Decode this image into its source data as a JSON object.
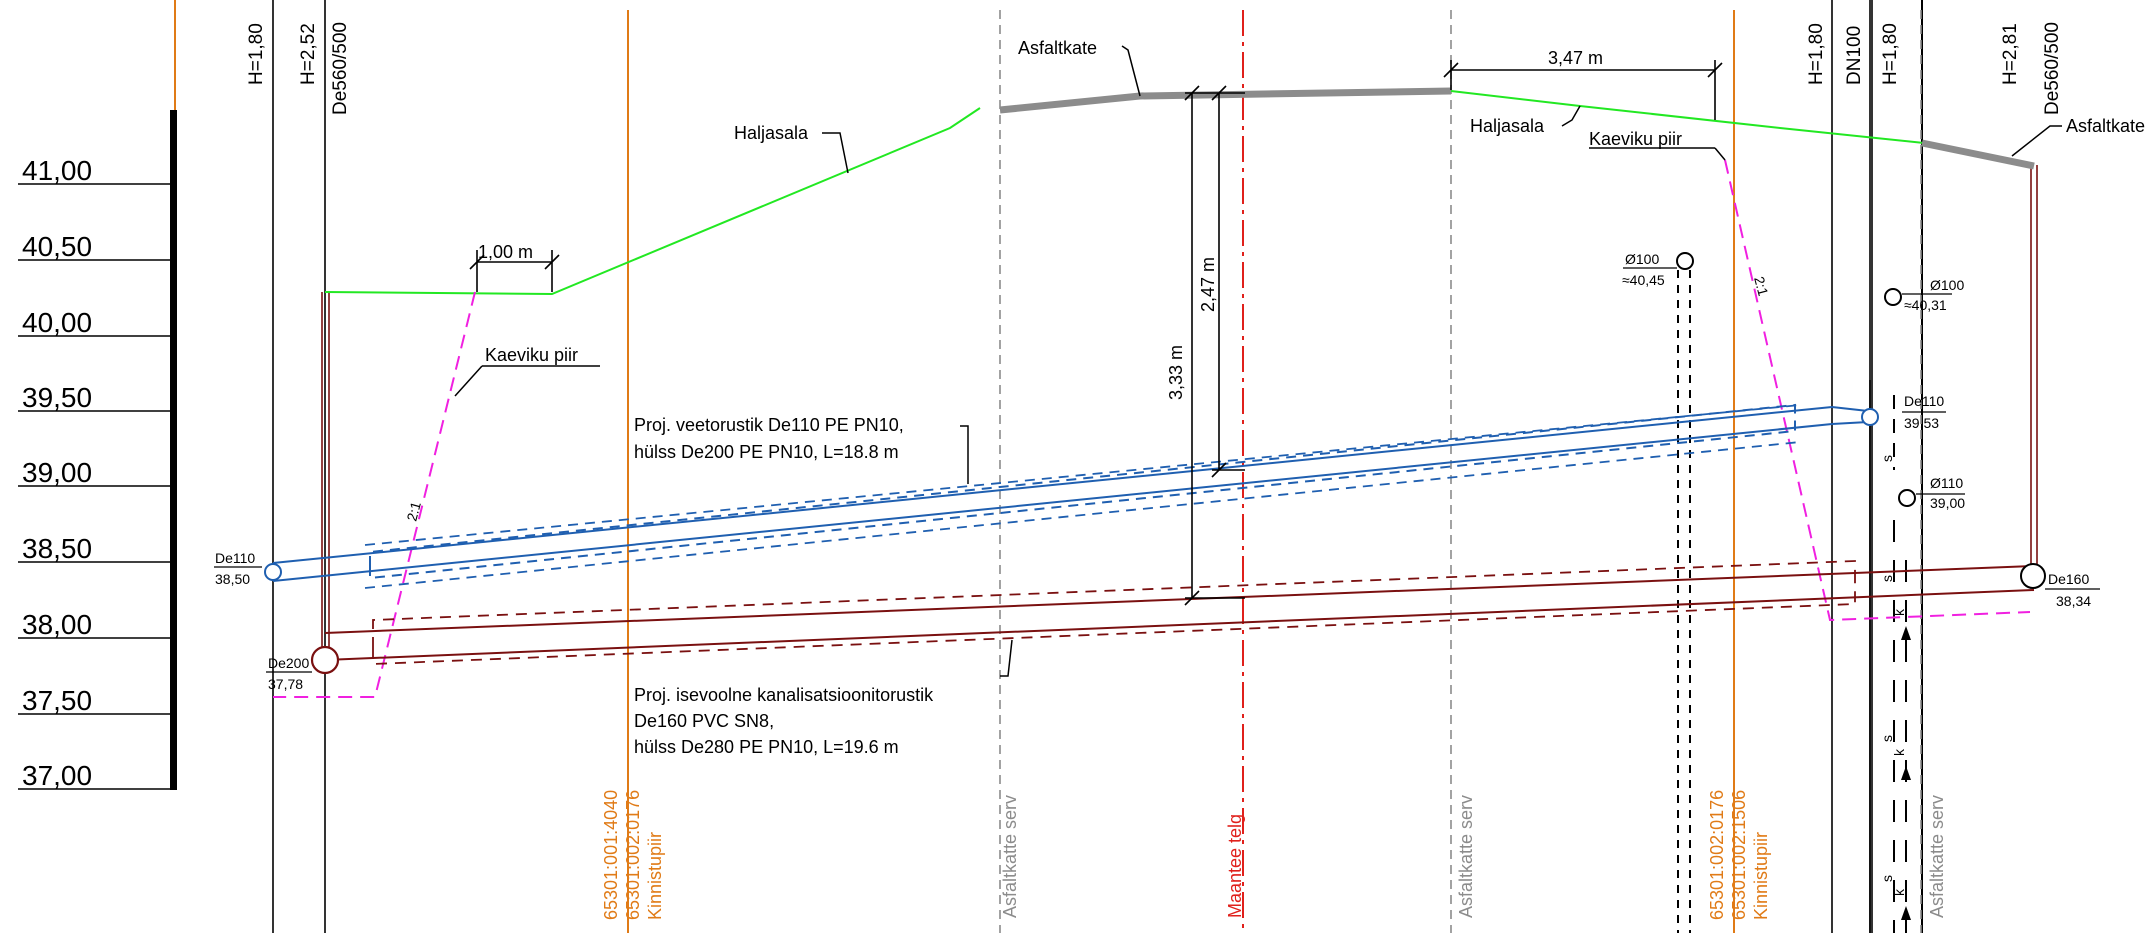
{
  "elevation_scale": [
    "41,00",
    "40,50",
    "40,00",
    "39,50",
    "39,00",
    "38,50",
    "38,00",
    "37,50",
    "37,00"
  ],
  "top_labels": [
    "H=1,80",
    "H=2,52",
    "De560/500",
    "H=1,80",
    "DN100",
    "H=1,80",
    "H=2,81",
    "De560/500"
  ],
  "surface_labels": {
    "asfaltkate_1": "Asfaltkate",
    "asfaltkate_2": "Asfaltkate",
    "haljasala_1": "Haljasala",
    "haljasala_2": "Haljasala",
    "kaeviku_piir_1": "Kaeviku piir",
    "kaeviku_piir_2": "Kaeviku piir"
  },
  "dimensions": {
    "width_1": "1,00 m",
    "width_2": "3,47 m",
    "depth_1": "3,33 m",
    "depth_2": "2,47 m",
    "slope_1": "2:1",
    "slope_2": "2:1"
  },
  "pipe_labels": {
    "de110_left_name": "De110",
    "de110_left_level": "38,50",
    "de200_name": "De200",
    "de200_level": "37,78",
    "d100_a_name": "Ø100",
    "d100_a_level": "≈40,45",
    "d100_b_name": "Ø100",
    "d100_b_level": "≈40,31",
    "de110_right_name": "De110",
    "de110_right_level": "39,53",
    "d110_name": "Ø110",
    "d110_level": "39,00",
    "de160_name": "De160",
    "de160_level": "38,34",
    "marker_s": "s",
    "marker_k": "k"
  },
  "annotations": {
    "water_1": "Proj. veetorustik De110 PE PN10,",
    "water_2": "hülss De200 PE PN10, L=18.8 m",
    "sewer_1": "Proj. isevoolne kanalisatsioonitorustik",
    "sewer_2": "De160 PVC SN8,",
    "sewer_3": "hülss De280 PE PN10, L=19.6 m"
  },
  "vertical_labels": {
    "parcel_left_1": "65301:001:4040",
    "parcel_left_2": "65301:002:0176",
    "parcel_left_3": "Kinnistupiir",
    "asphalt_edge_1": "Asfaltkatte serv",
    "road_axis": "Maantee telg",
    "asphalt_edge_2": "Asfaltkatte serv",
    "parcel_right_1": "65301:002:0176",
    "parcel_right_2": "65301:002:1506",
    "parcel_right_3": "Kinnistupiir",
    "asphalt_edge_3": "Asfaltkatte serv"
  },
  "colors": {
    "ground": "#22e822",
    "asphalt": "#8c8c8c",
    "water_pipe": "#1f5fb0",
    "sewer_pipe": "#7a1010",
    "trench": "#f020e0",
    "parcel": "#e07b17",
    "axis": "#e0201b"
  }
}
